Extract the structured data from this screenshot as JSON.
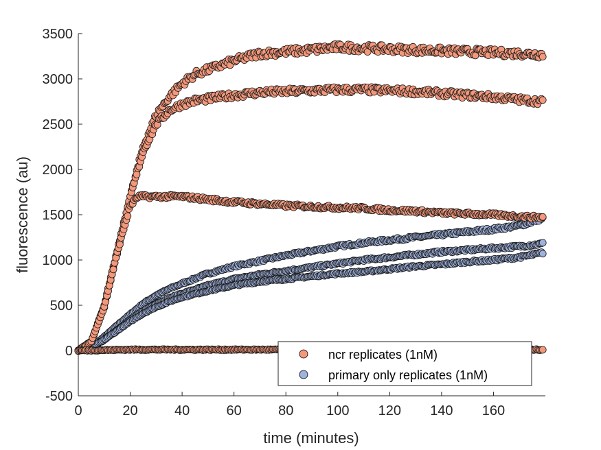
{
  "chart_data": {
    "type": "scatter",
    "xlabel": "time (minutes)",
    "ylabel": "fluorescence (au)",
    "xlim": [
      0,
      180
    ],
    "ylim": [
      -500,
      3500
    ],
    "x_ticks": [
      "0",
      "20",
      "40",
      "60",
      "80",
      "100",
      "120",
      "140",
      "160"
    ],
    "y_ticks": [
      "-500",
      "0",
      "500",
      "1000",
      "1500",
      "2000",
      "2500",
      "3000",
      "3500"
    ],
    "legend_position": "bottom-right",
    "legend": [
      {
        "label": "ncr replicates (1nM)",
        "color": "#f4987b"
      },
      {
        "label": "primary only replicates (1nM)",
        "color": "#9fb2dc"
      }
    ],
    "series": [
      {
        "name": "ncr replicates (1nM)",
        "color": "#f4987b",
        "replicates": [
          {
            "x": [
              0,
              5,
              10,
              15,
              20,
              25,
              30,
              35,
              40,
              45,
              50,
              60,
              70,
              80,
              90,
              100,
              110,
              120,
              130,
              140,
              150,
              160,
              170,
              179
            ],
            "y": [
              0,
              100,
              500,
              1100,
              1700,
              2250,
              2600,
              2800,
              2950,
              3050,
              3100,
              3200,
              3280,
              3300,
              3320,
              3350,
              3340,
              3330,
              3320,
              3310,
              3300,
              3290,
              3280,
              3270
            ]
          },
          {
            "x": [
              0,
              5,
              10,
              15,
              20,
              25,
              30,
              35,
              40,
              45,
              50,
              60,
              70,
              80,
              90,
              100,
              110,
              120,
              130,
              140,
              150,
              160,
              170,
              179
            ],
            "y": [
              0,
              100,
              480,
              1080,
              1690,
              2200,
              2500,
              2650,
              2720,
              2760,
              2780,
              2820,
              2850,
              2860,
              2870,
              2880,
              2880,
              2870,
              2860,
              2840,
              2820,
              2800,
              2770,
              2750
            ]
          },
          {
            "x": [
              0,
              5,
              10,
              15,
              20,
              23,
              30,
              40,
              50,
              60,
              70,
              80,
              90,
              100,
              110,
              120,
              130,
              140,
              150,
              160,
              170,
              179
            ],
            "y": [
              0,
              100,
              480,
              1080,
              1600,
              1700,
              1700,
              1700,
              1670,
              1640,
              1620,
              1600,
              1590,
              1580,
              1570,
              1550,
              1540,
              1520,
              1510,
              1500,
              1480,
              1470
            ]
          },
          {
            "x": [
              0,
              20,
              40,
              60,
              80,
              100,
              120,
              140,
              160,
              179
            ],
            "y": [
              0,
              10,
              10,
              10,
              10,
              10,
              10,
              10,
              10,
              10
            ]
          }
        ]
      },
      {
        "name": "primary only replicates (1nM)",
        "color": "#9fb2dc",
        "replicates": [
          {
            "x": [
              0,
              5,
              10,
              15,
              20,
              25,
              30,
              35,
              40,
              50,
              60,
              70,
              80,
              90,
              100,
              110,
              120,
              130,
              140,
              150,
              160,
              170,
              179
            ],
            "y": [
              0,
              40,
              150,
              280,
              400,
              520,
              610,
              680,
              740,
              850,
              930,
              990,
              1050,
              1100,
              1150,
              1190,
              1220,
              1250,
              1280,
              1310,
              1340,
              1380,
              1460
            ]
          },
          {
            "x": [
              0,
              5,
              10,
              15,
              20,
              25,
              30,
              35,
              40,
              50,
              60,
              70,
              80,
              90,
              100,
              110,
              120,
              130,
              140,
              150,
              160,
              170,
              179
            ],
            "y": [
              0,
              30,
              120,
              230,
              340,
              440,
              520,
              580,
              630,
              720,
              790,
              840,
              880,
              920,
              960,
              1000,
              1030,
              1060,
              1090,
              1110,
              1130,
              1150,
              1180
            ]
          },
          {
            "x": [
              0,
              5,
              10,
              15,
              20,
              25,
              30,
              35,
              40,
              50,
              60,
              70,
              80,
              90,
              100,
              110,
              120,
              130,
              140,
              150,
              160,
              170,
              179
            ],
            "y": [
              0,
              30,
              120,
              220,
              320,
              410,
              480,
              540,
              590,
              660,
              720,
              760,
              790,
              820,
              850,
              870,
              900,
              930,
              950,
              980,
              1000,
              1030,
              1080
            ]
          }
        ]
      }
    ]
  }
}
